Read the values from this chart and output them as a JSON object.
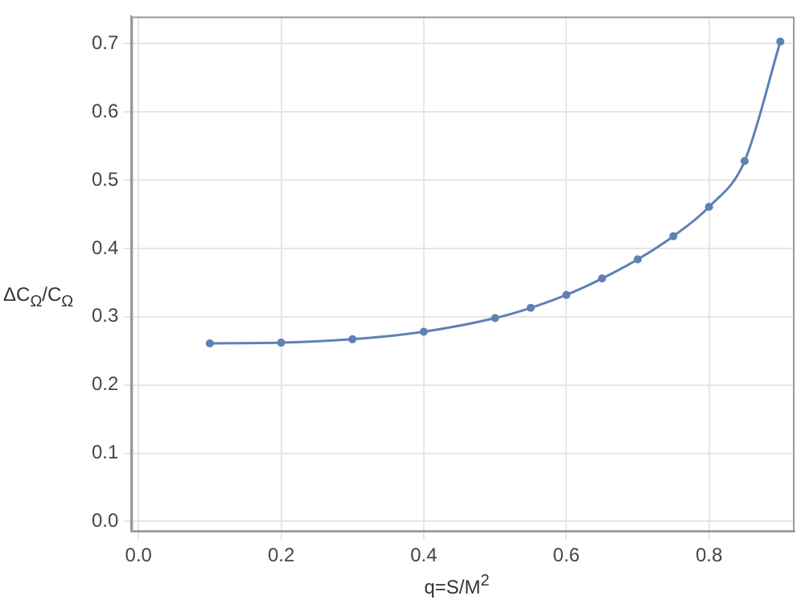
{
  "chart_data": {
    "type": "line",
    "xlabel": "q=S/M$^{2}$",
    "ylabel": "ΔC$_{Ω}$/C$_{Ω}$",
    "x": [
      0.1,
      0.2,
      0.3,
      0.4,
      0.5,
      0.55,
      0.6,
      0.65,
      0.7,
      0.75,
      0.8,
      0.85,
      0.9
    ],
    "series": [
      {
        "color": "#5e81b5",
        "values": [
          0.261,
          0.262,
          0.267,
          0.278,
          0.298,
          0.313,
          0.332,
          0.356,
          0.384,
          0.418,
          0.461,
          0.528,
          0.703
        ]
      }
    ],
    "xlim": [
      -0.01,
      0.92
    ],
    "xticks": [
      {
        "value": 0,
        "label": "0.0"
      },
      0.2,
      0.4,
      0.6,
      0.8
    ],
    "ylim": [
      -0.015,
      0.74
    ],
    "yticks": [
      {
        "value": 0,
        "label": "0.0"
      },
      0.1,
      0.2,
      0.3,
      0.4,
      0.5,
      0.6,
      0.7
    ],
    "grid": true,
    "marker": "circle",
    "line_style": "solid",
    "legend": false
  }
}
